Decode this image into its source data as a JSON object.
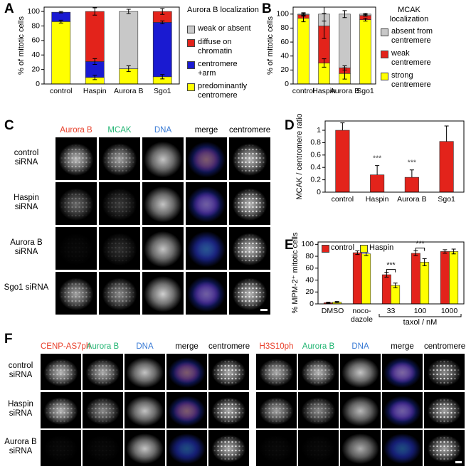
{
  "chart_data": [
    {
      "type": "stacked_bar",
      "panel": "A",
      "ylabel": "% of mitotic cells",
      "legend_title": "Aurora B localization",
      "categories": [
        "control",
        "Haspin",
        "Aurora B",
        "Sgo1"
      ],
      "ylim": [
        0,
        106
      ],
      "yticks": [
        0,
        20,
        40,
        60,
        80,
        100
      ],
      "series": [
        {
          "name": "predominantly centromere",
          "color": "#ffff00",
          "values": [
            86,
            9,
            21,
            10
          ],
          "errors": [
            2,
            3,
            4,
            3
          ]
        },
        {
          "name": "centromere +arm",
          "color": "#1a1ad1",
          "values": [
            13,
            22,
            0,
            75
          ],
          "errors": [
            1,
            4,
            null,
            2
          ]
        },
        {
          "name": "diffuse on chromatin",
          "color": "#e3231b",
          "values": [
            0,
            69,
            0,
            15
          ],
          "errors": [
            null,
            5,
            null,
            4
          ]
        },
        {
          "name": "weak or absent",
          "color": "#c8c8c8",
          "values": [
            0,
            0,
            79,
            0
          ],
          "errors": [
            null,
            null,
            3,
            null
          ]
        }
      ]
    },
    {
      "type": "stacked_bar",
      "panel": "B",
      "ylabel": "% of mitotic cells",
      "legend_title": "MCAK localization",
      "categories": [
        "control",
        "Haspin",
        "Aurora B",
        "Sgo1"
      ],
      "ylim": [
        0,
        110
      ],
      "yticks": [
        0,
        20,
        40,
        60,
        80,
        100
      ],
      "series": [
        {
          "name": "strong centremere",
          "color": "#ffff00",
          "values": [
            94,
            30,
            15,
            92
          ],
          "errors": [
            5,
            6,
            8,
            2
          ]
        },
        {
          "name": "weak centremere",
          "color": "#e3231b",
          "values": [
            5,
            53,
            8,
            6
          ],
          "errors": [
            2,
            18,
            3,
            1
          ]
        },
        {
          "name": "absent from centremere",
          "color": "#c8c8c8",
          "values": [
            1,
            17,
            77,
            2
          ],
          "errors": [
            2,
            10,
            5,
            1
          ]
        }
      ]
    },
    {
      "type": "bar",
      "panel": "D",
      "ylabel": "MCAK / centromere ratio",
      "categories": [
        "control",
        "Haspin",
        "Aurora B",
        "Sgo1"
      ],
      "values": [
        1.0,
        0.28,
        0.24,
        0.82
      ],
      "errors": [
        0.12,
        0.15,
        0.12,
        0.25
      ],
      "significance": [
        null,
        "***",
        "***",
        null
      ],
      "color": "#e3231b",
      "ylim": [
        0,
        1.15
      ],
      "yticks": [
        0,
        0.2,
        0.4,
        0.6,
        0.8,
        1
      ]
    },
    {
      "type": "grouped_bar",
      "panel": "E",
      "ylabel": "% MPM-2⁺ mitotic cells",
      "group_label": "taxol / nM",
      "categories": [
        "DMSO",
        "noco-dazole",
        "33",
        "100",
        "1000"
      ],
      "ylim": [
        0,
        104
      ],
      "yticks": [
        0,
        20,
        40,
        60,
        80,
        100
      ],
      "significance": [
        null,
        null,
        "***",
        "***",
        null
      ],
      "series": [
        {
          "name": "control",
          "color": "#e3231b",
          "values": [
            2,
            86,
            49,
            85,
            88
          ],
          "errors": [
            1,
            3,
            4,
            4,
            3
          ]
        },
        {
          "name": "Haspin",
          "color": "#ffff00",
          "values": [
            3,
            84,
            31,
            70,
            88
          ],
          "errors": [
            1,
            3,
            4,
            6,
            4
          ]
        }
      ]
    }
  ],
  "panel_c": {
    "letter": "C",
    "columns": [
      "Aurora B",
      "MCAK",
      "DNA",
      "merge",
      "centromere"
    ],
    "colors": [
      "#e8412c",
      "#22b573",
      "#3a7bd5",
      "#000000",
      "#000000"
    ],
    "rows": [
      "control siRNA",
      "Haspin siRNA",
      "Aurora B siRNA",
      "Sgo1 siRNA"
    ]
  },
  "panel_f": {
    "letter": "F",
    "left": {
      "columns": [
        "CENP-AS7ph",
        "Aurora B",
        "DNA",
        "merge",
        "centromere"
      ],
      "colors": [
        "#e8412c",
        "#22b573",
        "#3a7bd5",
        "#000000",
        "#000000"
      ]
    },
    "right": {
      "columns": [
        "H3S10ph",
        "Aurora B",
        "DNA",
        "merge",
        "centromere"
      ],
      "colors": [
        "#e8412c",
        "#22b573",
        "#3a7bd5",
        "#000000",
        "#000000"
      ]
    },
    "rows": [
      "control siRNA",
      "Haspin siRNA",
      "Aurora B siRNA"
    ]
  }
}
